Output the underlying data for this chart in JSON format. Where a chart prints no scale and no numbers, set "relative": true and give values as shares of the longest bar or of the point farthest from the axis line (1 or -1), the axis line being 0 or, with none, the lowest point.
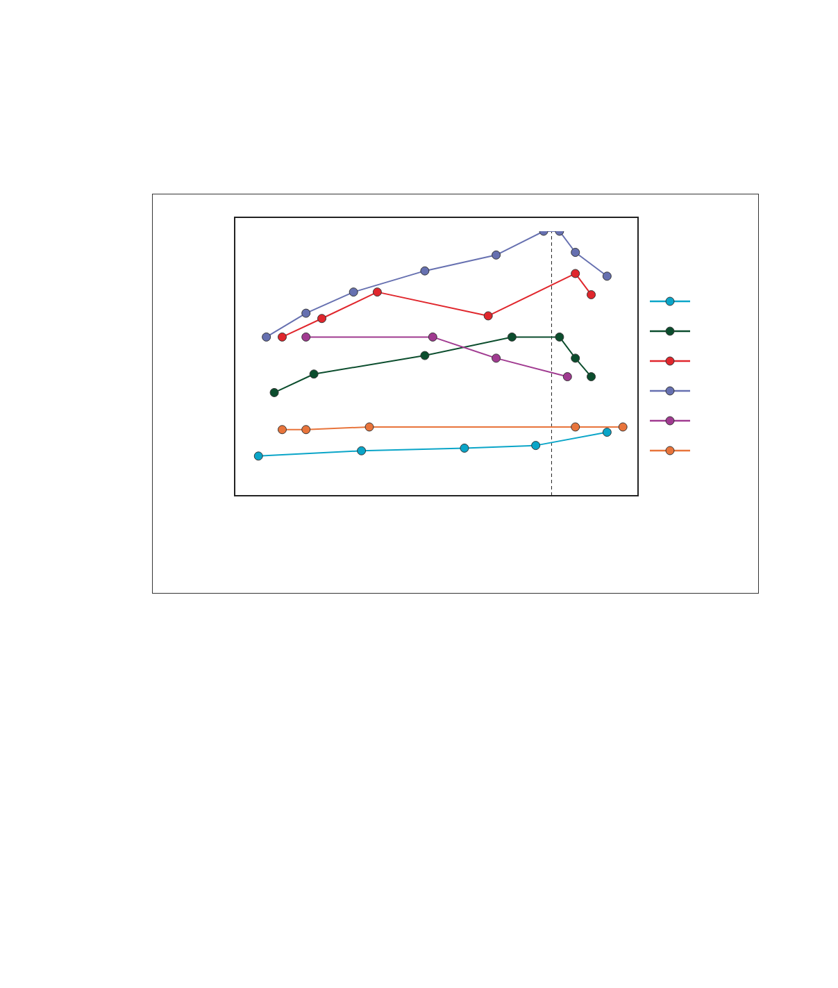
{
  "chart_data": {
    "type": "line",
    "relative": true,
    "categories": [
      null,
      null,
      null,
      null,
      null,
      null,
      null,
      null,
      null,
      null,
      null,
      null,
      null,
      null,
      null,
      null,
      null,
      null,
      null,
      null,
      null,
      null,
      null,
      null,
      null,
      null,
      null,
      null,
      null,
      null,
      null,
      null,
      null,
      null,
      null,
      null,
      null,
      null,
      null,
      null,
      null,
      null,
      null,
      null,
      null,
      null,
      null,
      null,
      null,
      null,
      null,
      null
    ],
    "series": [
      {
        "color": "#0aa5c8",
        "values": [
          null,
          null,
          null,
          0.15,
          null,
          null,
          null,
          null,
          null,
          null,
          null,
          null,
          null,
          null,
          null,
          null,
          0.17,
          null,
          null,
          null,
          null,
          null,
          null,
          null,
          null,
          null,
          null,
          null,
          null,
          0.18,
          null,
          null,
          null,
          null,
          null,
          null,
          null,
          null,
          0.19,
          null,
          null,
          null,
          null,
          null,
          null,
          null,
          null,
          0.24,
          null,
          null,
          null,
          null
        ]
      },
      {
        "color": "#0b4d2d",
        "values": [
          null,
          null,
          null,
          null,
          null,
          0.39,
          null,
          null,
          null,
          null,
          0.46,
          null,
          null,
          null,
          null,
          null,
          null,
          null,
          null,
          null,
          null,
          null,
          null,
          null,
          0.53,
          null,
          null,
          null,
          null,
          null,
          null,
          null,
          null,
          null,
          null,
          0.6,
          null,
          null,
          null,
          null,
          null,
          0.6,
          null,
          0.52,
          null,
          0.45,
          null,
          null,
          null,
          null,
          null,
          null
        ]
      },
      {
        "color": "#e0262c",
        "values": [
          null,
          null,
          null,
          null,
          null,
          null,
          0.6,
          null,
          null,
          null,
          null,
          0.67,
          null,
          null,
          null,
          null,
          null,
          null,
          0.77,
          null,
          null,
          null,
          null,
          null,
          null,
          null,
          null,
          null,
          null,
          null,
          null,
          null,
          0.68,
          null,
          null,
          null,
          null,
          null,
          null,
          null,
          null,
          null,
          null,
          0.84,
          null,
          0.76,
          null,
          null,
          null,
          null,
          null,
          null
        ]
      },
      {
        "color": "#6670b0",
        "values": [
          null,
          null,
          null,
          null,
          0.6,
          null,
          null,
          null,
          null,
          0.69,
          null,
          null,
          null,
          null,
          null,
          0.77,
          null,
          null,
          null,
          null,
          null,
          null,
          null,
          null,
          0.85,
          null,
          null,
          null,
          null,
          null,
          null,
          null,
          null,
          0.91,
          null,
          null,
          null,
          null,
          null,
          1,
          null,
          1,
          null,
          0.92,
          null,
          null,
          null,
          0.83,
          null,
          null,
          null,
          null
        ]
      },
      {
        "color": "#a03a90",
        "values": [
          null,
          null,
          null,
          null,
          null,
          null,
          null,
          null,
          null,
          0.6,
          null,
          null,
          null,
          null,
          null,
          null,
          null,
          null,
          null,
          null,
          null,
          null,
          null,
          null,
          null,
          0.6,
          null,
          null,
          null,
          null,
          null,
          null,
          null,
          0.52,
          null,
          null,
          null,
          null,
          null,
          null,
          null,
          null,
          0.45,
          null,
          null,
          null,
          null,
          null,
          null,
          null,
          null,
          null
        ]
      },
      {
        "color": "#e8743b",
        "values": [
          null,
          null,
          null,
          null,
          null,
          null,
          0.25,
          null,
          null,
          0.25,
          null,
          null,
          null,
          null,
          null,
          null,
          null,
          0.26,
          null,
          null,
          null,
          null,
          null,
          null,
          null,
          null,
          null,
          null,
          null,
          null,
          null,
          null,
          null,
          null,
          null,
          null,
          null,
          null,
          null,
          null,
          null,
          null,
          null,
          0.26,
          null,
          null,
          null,
          null,
          null,
          0.26,
          null,
          null
        ]
      }
    ],
    "marker": "circle",
    "line_style": "solid"
  }
}
